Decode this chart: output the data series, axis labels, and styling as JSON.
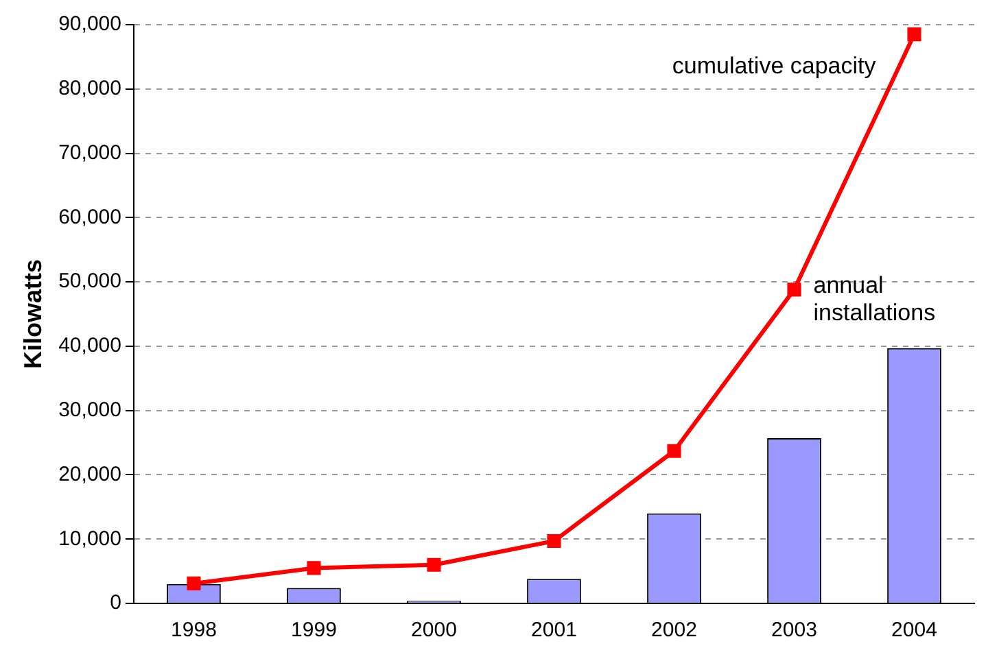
{
  "chart_data": {
    "type": "bar",
    "ylabel": "Kilowatts",
    "categories": [
      "1998",
      "1999",
      "2000",
      "2001",
      "2002",
      "2003",
      "2004"
    ],
    "series": [
      {
        "name": "annual installations",
        "color": "#9999ff",
        "values": [
          3000,
          2400,
          400,
          3800,
          14000,
          25700,
          39700
        ]
      },
      {
        "name": "cumulative capacity",
        "type": "line",
        "color": "#ff0000",
        "values": [
          3100,
          5500,
          6000,
          9700,
          23700,
          48800,
          88500
        ]
      }
    ],
    "ylim": [
      0,
      90000
    ],
    "yticks": [
      0,
      {
        "value": 10000,
        "label": "10,000"
      },
      {
        "value": 20000,
        "label": "20,000"
      },
      {
        "value": 30000,
        "label": "30,000"
      },
      {
        "value": 40000,
        "label": "40,000"
      },
      {
        "value": 50000,
        "label": "50,000"
      },
      {
        "value": 60000,
        "label": "60,000"
      },
      {
        "value": 70000,
        "label": "70,000"
      },
      {
        "value": 80000,
        "label": "80,000"
      },
      {
        "value": 90000,
        "label": "90,000"
      }
    ],
    "grid": "y",
    "legend": false,
    "marker": "square",
    "line_style": "solid"
  }
}
